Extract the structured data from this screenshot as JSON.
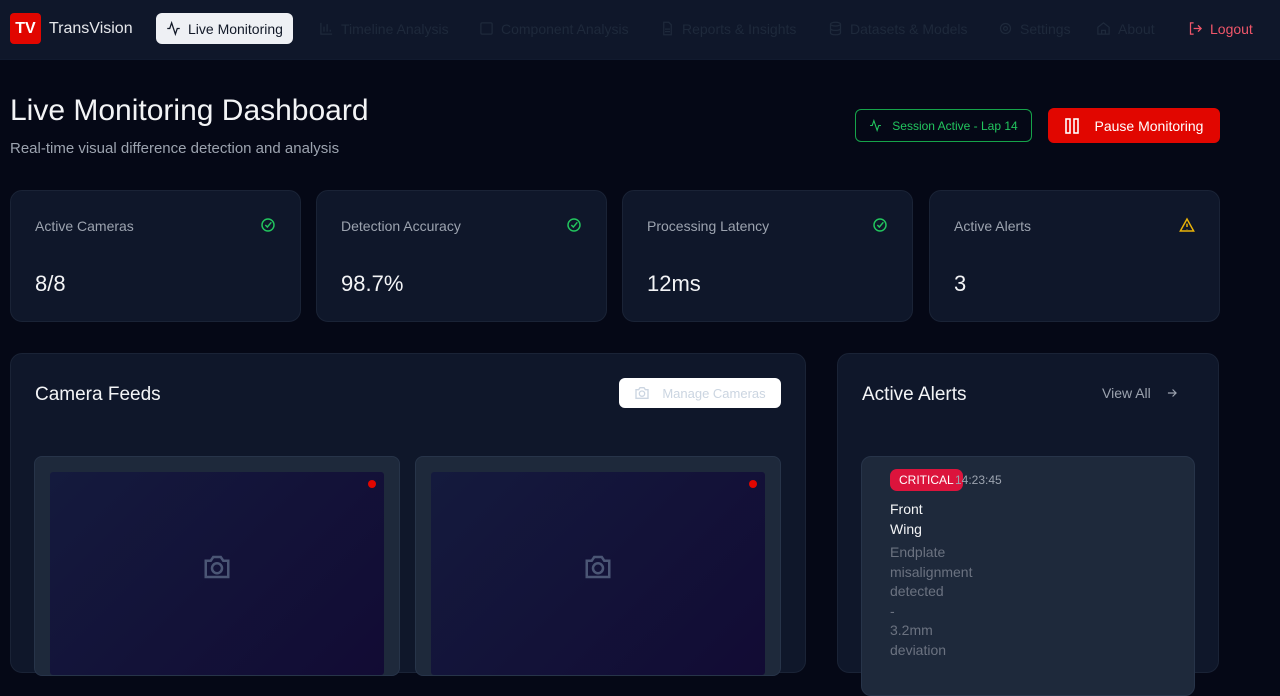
{
  "nav": {
    "logo": "TV",
    "brand": "TransVision",
    "items": [
      {
        "label": "Live Monitoring",
        "icon": "activity-icon",
        "active": true
      },
      {
        "label": "Timeline Analysis",
        "icon": "bar-chart-icon"
      },
      {
        "label": "Component Analysis",
        "icon": "square-icon"
      },
      {
        "label": "Reports & Insights",
        "icon": "file-text-icon"
      },
      {
        "label": "Datasets & Models",
        "icon": "database-icon"
      },
      {
        "label": "Settings",
        "icon": "gear-icon"
      },
      {
        "label": "About",
        "icon": "home-icon"
      }
    ],
    "logout": "Logout"
  },
  "header": {
    "title": "Live Monitoring Dashboard",
    "subtitle": "Real-time visual difference detection and analysis",
    "session": "Session Active - Lap 14",
    "pause": "Pause Monitoring"
  },
  "stats": [
    {
      "label": "Active Cameras",
      "value": "8/8",
      "status": "ok"
    },
    {
      "label": "Detection Accuracy",
      "value": "98.7%",
      "status": "ok"
    },
    {
      "label": "Processing Latency",
      "value": "12ms",
      "status": "ok"
    },
    {
      "label": "Active Alerts",
      "value": "3",
      "status": "warning"
    }
  ],
  "colors": {
    "accent": "#e10600",
    "ok": "#22c55e",
    "warning": "#eab308",
    "critical": "#dc143c"
  },
  "camera_feeds": {
    "title": "Camera Feeds",
    "manage": "Manage Cameras"
  },
  "alerts": {
    "title": "Active Alerts",
    "view_all": "View All",
    "items": [
      {
        "severity": "CRITICAL",
        "time": "14:23:45",
        "title": "Front Wing",
        "description": "Endplate misalignment detected - 3.2mm deviation"
      }
    ]
  }
}
